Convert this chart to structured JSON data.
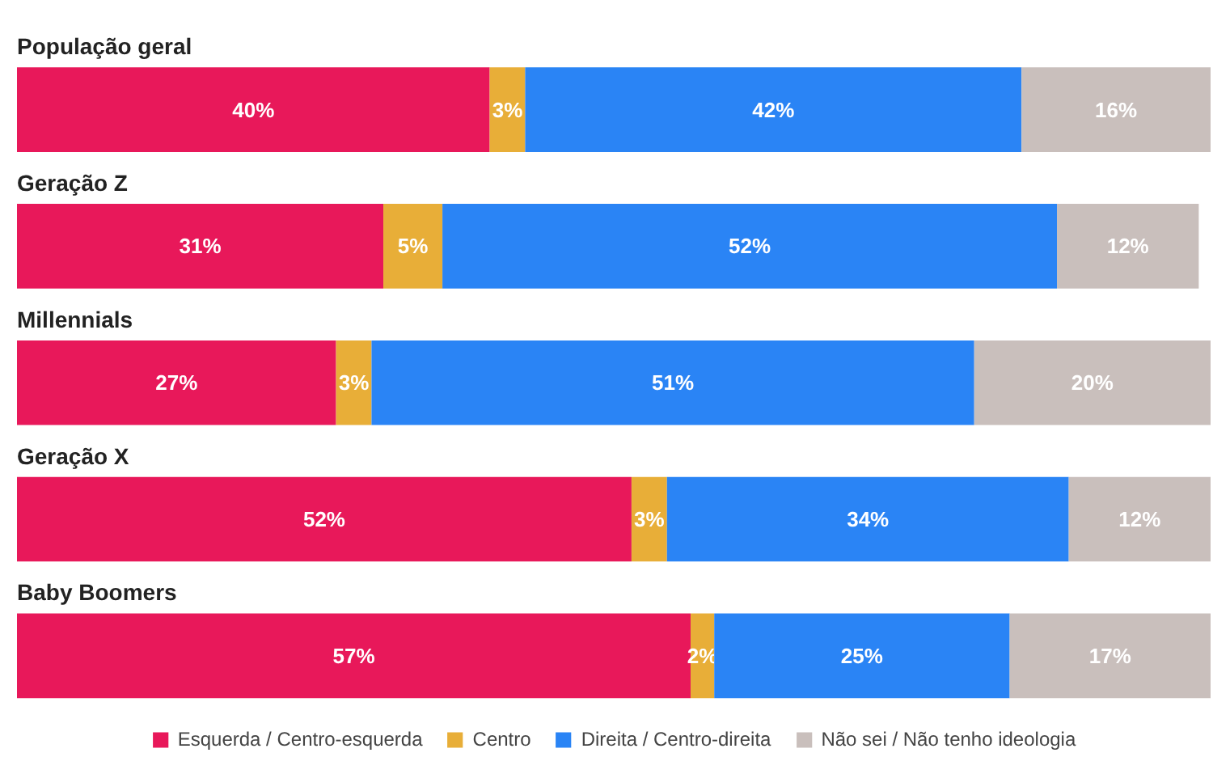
{
  "chart_data": {
    "type": "bar",
    "orientation": "horizontal",
    "stacked": true,
    "categories": [
      "População geral",
      "Geração Z",
      "Millennials",
      "Geração X",
      "Baby Boomers"
    ],
    "xlim": [
      0,
      101
    ],
    "tick_labels": false,
    "grid": false,
    "legend": "bottom",
    "series": [
      {
        "name": "Esquerda / Centro-esquerda",
        "color": "#e8185a",
        "values": [
          40,
          31,
          27,
          52,
          57
        ],
        "value_labels": [
          "40%",
          "31%",
          "27%",
          "52%",
          "57%"
        ]
      },
      {
        "name": "Centro",
        "color": "#e8ae38",
        "values": [
          3,
          5,
          3,
          3,
          2
        ],
        "value_labels": [
          "3%",
          "5%",
          "3%",
          "3%",
          "2%"
        ]
      },
      {
        "name": "Direita / Centro-direita",
        "color": "#2a84f5",
        "values": [
          42,
          52,
          51,
          34,
          25
        ],
        "value_labels": [
          "42%",
          "52%",
          "51%",
          "34%",
          "25%"
        ]
      },
      {
        "name": "Não sei / Não tenho ideologia",
        "color": "#c9bfbc",
        "values": [
          16,
          12,
          20,
          12,
          17
        ],
        "value_labels": [
          "16%",
          "12%",
          "20%",
          "12%",
          "17%"
        ]
      }
    ]
  }
}
